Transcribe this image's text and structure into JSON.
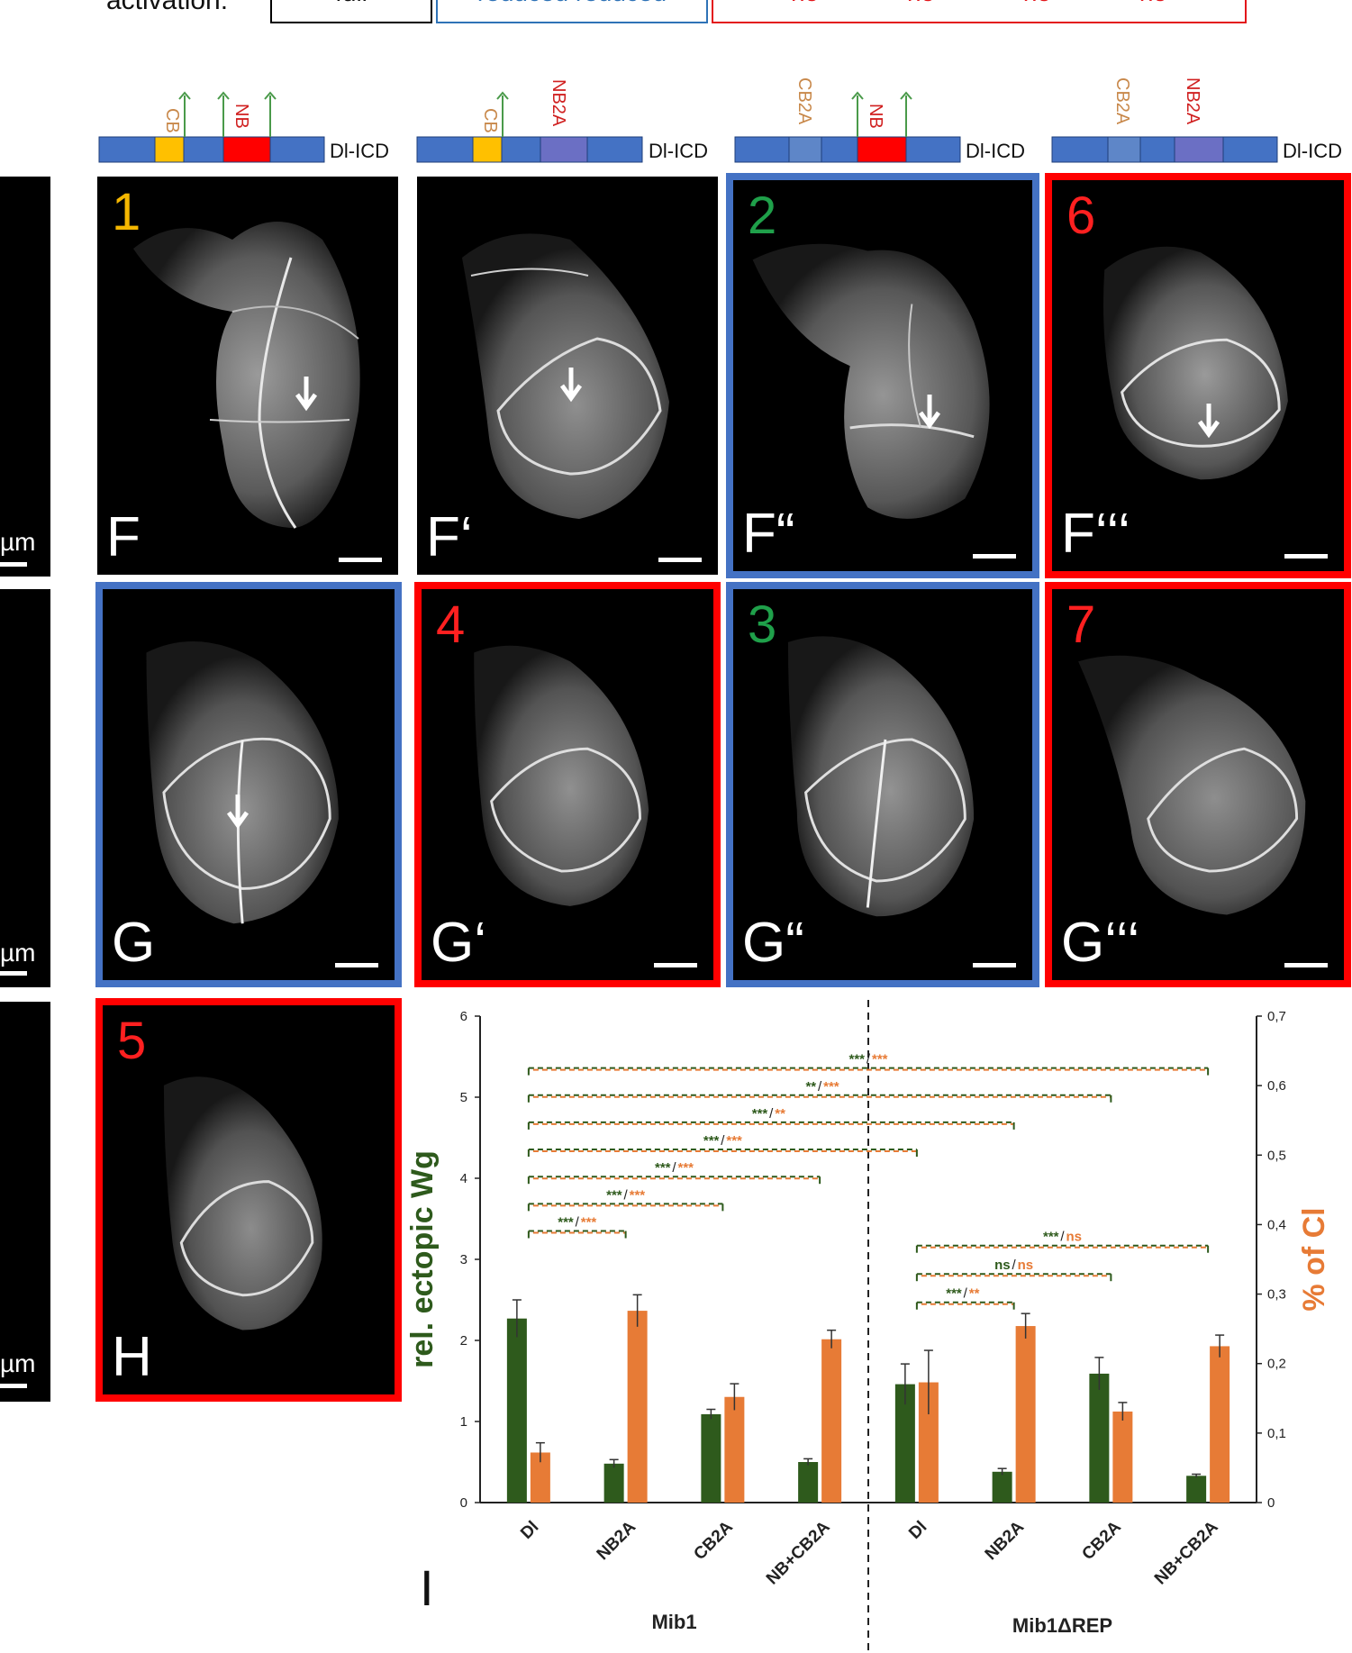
{
  "activation": {
    "label": "activation:",
    "boxes": [
      {
        "texts": [
          "full"
        ],
        "style": "black"
      },
      {
        "texts": [
          "reduced",
          "reduced"
        ],
        "style": "blue"
      },
      {
        "texts": [
          "no",
          "no",
          "no",
          "no"
        ],
        "style": "red"
      }
    ]
  },
  "constructs": [
    {
      "name": "Dl-ICD",
      "domain_labels": [
        "CB",
        "NB"
      ]
    },
    {
      "name": "Dl-ICD",
      "domain_labels": [
        "CB",
        "NB2A"
      ]
    },
    {
      "name": "Dl-ICD",
      "domain_labels": [
        "CB2A",
        "NB"
      ]
    },
    {
      "name": "Dl-ICD",
      "domain_labels": [
        "CB2A",
        "NB2A"
      ]
    }
  ],
  "left_strip": {
    "unit": "µm"
  },
  "panels": [
    {
      "label": "F",
      "number": "1",
      "number_color": "#f5b700",
      "frame": "none",
      "arrow": true
    },
    {
      "label": "F‘",
      "number": "",
      "number_color": "",
      "frame": "none",
      "arrow": true
    },
    {
      "label": "F“",
      "number": "2",
      "number_color": "#1fa04a",
      "frame": "blue",
      "arrow": true
    },
    {
      "label": "F‘‘‘",
      "number": "6",
      "number_color": "#ff2020",
      "frame": "red",
      "arrow": true
    },
    {
      "label": "G",
      "number": "",
      "number_color": "",
      "frame": "blue",
      "arrow": true
    },
    {
      "label": "G‘",
      "number": "4",
      "number_color": "#ff2020",
      "frame": "red",
      "arrow": false
    },
    {
      "label": "G“",
      "number": "3",
      "number_color": "#1fa04a",
      "frame": "blue",
      "arrow": false
    },
    {
      "label": "G‘‘‘",
      "number": "7",
      "number_color": "#ff2020",
      "frame": "red",
      "arrow": false
    },
    {
      "label": "H",
      "number": "5",
      "number_color": "#ff2020",
      "frame": "red",
      "arrow": false
    }
  ],
  "chart_panel_label": "I",
  "colors": {
    "green": "#2e5a1c",
    "orange": "#e77b36",
    "blue_frame": "#4472c4",
    "red_frame": "#ff0000"
  },
  "chart_data": {
    "type": "bar",
    "categories": [
      "Dl",
      "NB2A",
      "CB2A",
      "NB+CB2A",
      "Dl",
      "NB2A",
      "CB2A",
      "NB+CB2A"
    ],
    "groups": [
      "Mib1",
      "Mib1ΔREP"
    ],
    "ylabel": "rel. ectopic Wg",
    "y2label": "% of Cl",
    "ylim": [
      0,
      6
    ],
    "y2lim": [
      0,
      0.7
    ],
    "yticks": [
      "0",
      "1",
      "2",
      "3",
      "4",
      "5",
      "6"
    ],
    "y2ticks": [
      "0",
      "0,1",
      "0,2",
      "0,3",
      "0,4",
      "0,5",
      "0,6",
      "0,7"
    ],
    "series": [
      {
        "axis": "left",
        "color": "#2e5a1c",
        "values": [
          2.27,
          0.48,
          1.09,
          0.5,
          1.46,
          0.38,
          1.59,
          0.33
        ],
        "errors": [
          0.23,
          0.05,
          0.06,
          0.04,
          0.25,
          0.04,
          0.2,
          0.02
        ]
      },
      {
        "axis": "right",
        "color": "#e77b36",
        "values": [
          0.072,
          0.276,
          0.152,
          0.235,
          0.173,
          0.254,
          0.131,
          0.225
        ],
        "errors": [
          0.014,
          0.023,
          0.019,
          0.013,
          0.046,
          0.018,
          0.013,
          0.016
        ]
      }
    ],
    "significance": [
      {
        "from": 0,
        "to": 1,
        "green": "***",
        "orange": "***"
      },
      {
        "from": 0,
        "to": 2,
        "green": "***",
        "orange": "***"
      },
      {
        "from": 0,
        "to": 3,
        "green": "***",
        "orange": "***"
      },
      {
        "from": 0,
        "to": 4,
        "green": "***",
        "orange": "***"
      },
      {
        "from": 0,
        "to": 5,
        "green": "***",
        "orange": "**"
      },
      {
        "from": 0,
        "to": 6,
        "green": "**",
        "orange": "***"
      },
      {
        "from": 0,
        "to": 7,
        "green": "***",
        "orange": "***"
      },
      {
        "from": 4,
        "to": 5,
        "green": "***",
        "orange": "**"
      },
      {
        "from": 4,
        "to": 6,
        "green": "ns",
        "orange": "ns"
      },
      {
        "from": 4,
        "to": 7,
        "green": "***",
        "orange": "ns"
      }
    ]
  }
}
